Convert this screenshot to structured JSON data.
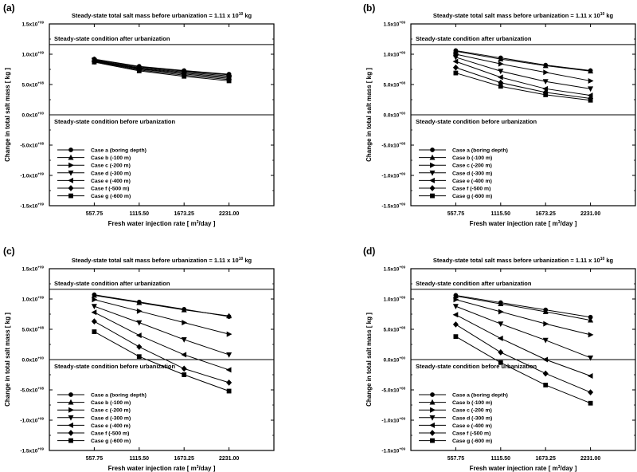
{
  "chart_data": [
    {
      "panel_label": "(a)",
      "type": "line",
      "title": "Steady-state total salt mass before urbanization = 1.11 x 10",
      "title_exponent": "10",
      "title_unit": " kg",
      "xlabel": "Fresh water injection rate [ m",
      "xlabel_exponent": "3",
      "xlabel_tail": "/day ]",
      "ylabel": "Change in total salt mass [ kg ]",
      "x": [
        557.75,
        1115.5,
        1673.25,
        2231.0
      ],
      "x_tick_labels": [
        "557.75",
        "1115.50",
        "1673.25",
        "2231.00"
      ],
      "y_ticks": [
        {
          "mant": "1.5x10",
          "exp": "+09"
        },
        {
          "mant": "1.0x10",
          "exp": "+09"
        },
        {
          "mant": "5.0x10",
          "exp": "+08"
        },
        {
          "mant": "0.0x10",
          "exp": "+00"
        },
        {
          "mant": "-5.0x10",
          "exp": "+08"
        },
        {
          "mant": "-1.0x10",
          "exp": "+09"
        },
        {
          "mant": "-1.5x10",
          "exp": "+09"
        }
      ],
      "ylim": [
        -1500000000,
        1500000000
      ],
      "after_level": 1160000000,
      "after_label": "Steady-state condition after urbanization",
      "before_label": "Steady-state condition before urbanization",
      "legend_position": "lower-left",
      "series": [
        {
          "name": "Case a (boring depth)",
          "marker": "circle",
          "values": [
            920000000,
            800000000,
            730000000,
            670000000
          ]
        },
        {
          "name": "Case b (-100 m)",
          "marker": "triangle-up",
          "values": [
            915000000,
            790000000,
            720000000,
            660000000
          ]
        },
        {
          "name": "Case c (-200 m)",
          "marker": "triangle-right",
          "values": [
            905000000,
            775000000,
            705000000,
            640000000
          ]
        },
        {
          "name": "Case d (-300 m)",
          "marker": "triangle-down",
          "values": [
            895000000,
            765000000,
            690000000,
            620000000
          ]
        },
        {
          "name": "Case e (-400 m)",
          "marker": "triangle-left",
          "values": [
            885000000,
            755000000,
            675000000,
            600000000
          ]
        },
        {
          "name": "Case f (-500 m)",
          "marker": "diamond",
          "values": [
            880000000,
            740000000,
            655000000,
            580000000
          ]
        },
        {
          "name": "Case g (-600 m)",
          "marker": "square",
          "values": [
            870000000,
            725000000,
            635000000,
            560000000
          ]
        }
      ]
    },
    {
      "panel_label": "(b)",
      "type": "line",
      "title": "Steady-state total salt mass before urbanization = 1.11 x 10",
      "title_exponent": "10",
      "title_unit": " kg",
      "xlabel": "Fresh water injection rate [ m",
      "xlabel_exponent": "3",
      "xlabel_tail": "/day ]",
      "ylabel": "Change in total salt mass [ kg ]",
      "x": [
        557.75,
        1115.5,
        1673.25,
        2231.0
      ],
      "x_tick_labels": [
        "557.75",
        "1115.50",
        "1673.25",
        "2231.00"
      ],
      "y_ticks": [
        {
          "mant": "1.5x10",
          "exp": "+09"
        },
        {
          "mant": "1.0x10",
          "exp": "+09"
        },
        {
          "mant": "5.0x10",
          "exp": "+08"
        },
        {
          "mant": "0.0x10",
          "exp": "+00"
        },
        {
          "mant": "-5.0x10",
          "exp": "+08"
        },
        {
          "mant": "-1.0x10",
          "exp": "+09"
        },
        {
          "mant": "-1.5x10",
          "exp": "+09"
        }
      ],
      "ylim": [
        -1500000000,
        1500000000
      ],
      "after_level": 1160000000,
      "after_label": "Steady-state condition after urbanization",
      "before_label": "Steady-state condition before urbanization",
      "legend_position": "lower-left",
      "series": [
        {
          "name": "Case a (boring depth)",
          "marker": "circle",
          "values": [
            1060000000,
            940000000,
            820000000,
            730000000
          ]
        },
        {
          "name": "Case b (-100 m)",
          "marker": "triangle-up",
          "values": [
            1050000000,
            920000000,
            810000000,
            720000000
          ]
        },
        {
          "name": "Case c (-200 m)",
          "marker": "triangle-right",
          "values": [
            1000000000,
            840000000,
            700000000,
            560000000
          ]
        },
        {
          "name": "Case d (-300 m)",
          "marker": "triangle-down",
          "values": [
            950000000,
            720000000,
            550000000,
            430000000
          ]
        },
        {
          "name": "Case e (-400 m)",
          "marker": "triangle-left",
          "values": [
            880000000,
            620000000,
            430000000,
            320000000
          ]
        },
        {
          "name": "Case f (-500 m)",
          "marker": "diamond",
          "values": [
            780000000,
            530000000,
            370000000,
            270000000
          ]
        },
        {
          "name": "Case g (-600 m)",
          "marker": "square",
          "values": [
            690000000,
            470000000,
            330000000,
            240000000
          ]
        }
      ]
    },
    {
      "panel_label": "(c)",
      "type": "line",
      "title": "Steady-state total salt mass before urbanization = 1.11 x 10",
      "title_exponent": "10",
      "title_unit": " kg",
      "xlabel": "Fresh water injection rate [ m",
      "xlabel_exponent": "3",
      "xlabel_tail": "/day ]",
      "ylabel": "Change in total salt mass [ kg ]",
      "x": [
        557.75,
        1115.5,
        1673.25,
        2231.0
      ],
      "x_tick_labels": [
        "557.75",
        "1115.50",
        "1673.25",
        "2231.00"
      ],
      "y_ticks": [
        {
          "mant": "1.5x10",
          "exp": "+09"
        },
        {
          "mant": "1.0x10",
          "exp": "+09"
        },
        {
          "mant": "5.0x10",
          "exp": "+08"
        },
        {
          "mant": "0.0x10",
          "exp": "+00"
        },
        {
          "mant": "-5.0x10",
          "exp": "+08"
        },
        {
          "mant": "-1.0x10",
          "exp": "+09"
        },
        {
          "mant": "-1.5x10",
          "exp": "+09"
        }
      ],
      "ylim": [
        -1500000000,
        1500000000
      ],
      "after_level": 1160000000,
      "after_label": "Steady-state condition after urbanization",
      "before_label": "Steady-state condition before urbanization",
      "legend_position": "lower-left",
      "series": [
        {
          "name": "Case a (boring depth)",
          "marker": "circle",
          "values": [
            1070000000,
            950000000,
            830000000,
            710000000
          ]
        },
        {
          "name": "Case b (-100 m)",
          "marker": "triangle-up",
          "values": [
            1060000000,
            940000000,
            820000000,
            720000000
          ]
        },
        {
          "name": "Case c (-200 m)",
          "marker": "triangle-right",
          "values": [
            990000000,
            800000000,
            610000000,
            420000000
          ]
        },
        {
          "name": "Case d (-300 m)",
          "marker": "triangle-down",
          "values": [
            880000000,
            610000000,
            330000000,
            80000000
          ]
        },
        {
          "name": "Case e (-400 m)",
          "marker": "triangle-left",
          "values": [
            780000000,
            400000000,
            80000000,
            -170000000
          ]
        },
        {
          "name": "Case f (-500 m)",
          "marker": "diamond",
          "values": [
            630000000,
            210000000,
            -150000000,
            -380000000
          ]
        },
        {
          "name": "Case g (-600 m)",
          "marker": "square",
          "values": [
            460000000,
            50000000,
            -250000000,
            -520000000
          ]
        }
      ]
    },
    {
      "panel_label": "(d)",
      "type": "line",
      "title": "Steady-state total salt mass before urbanization = 1.11 x 10",
      "title_exponent": "10",
      "title_unit": " kg",
      "xlabel": "Fresh water injection rate [ m",
      "xlabel_exponent": "3",
      "xlabel_tail": "/day ]",
      "ylabel": "Change in total salt mass [ kg ]",
      "x": [
        557.75,
        1115.5,
        1673.25,
        2231.0
      ],
      "x_tick_labels": [
        "557.75",
        "1115.50",
        "1673.25",
        "2231.00"
      ],
      "y_ticks": [
        {
          "mant": "1.5x10",
          "exp": "+09"
        },
        {
          "mant": "1.0x10",
          "exp": "+09"
        },
        {
          "mant": "5.0x10",
          "exp": "+08"
        },
        {
          "mant": "0.0x10",
          "exp": "+00"
        },
        {
          "mant": "-5.0x10",
          "exp": "+08"
        },
        {
          "mant": "-1.0x10",
          "exp": "+09"
        },
        {
          "mant": "-1.5x10",
          "exp": "+09"
        }
      ],
      "ylim": [
        -1500000000,
        1500000000
      ],
      "after_level": 1160000000,
      "after_label": "Steady-state condition after urbanization",
      "before_label": "Steady-state condition before urbanization",
      "legend_position": "lower-left",
      "series": [
        {
          "name": "Case a (boring depth)",
          "marker": "circle",
          "values": [
            1060000000,
            940000000,
            820000000,
            700000000
          ]
        },
        {
          "name": "Case b (-100 m)",
          "marker": "triangle-up",
          "values": [
            1050000000,
            920000000,
            790000000,
            650000000
          ]
        },
        {
          "name": "Case c (-200 m)",
          "marker": "triangle-right",
          "values": [
            990000000,
            790000000,
            590000000,
            410000000
          ]
        },
        {
          "name": "Case d (-300 m)",
          "marker": "triangle-down",
          "values": [
            880000000,
            590000000,
            320000000,
            30000000
          ]
        },
        {
          "name": "Case e (-400 m)",
          "marker": "triangle-left",
          "values": [
            740000000,
            350000000,
            0,
            -270000000
          ]
        },
        {
          "name": "Case f (-500 m)",
          "marker": "diamond",
          "values": [
            580000000,
            120000000,
            -230000000,
            -540000000
          ]
        },
        {
          "name": "Case g (-600 m)",
          "marker": "square",
          "values": [
            380000000,
            -50000000,
            -420000000,
            -720000000
          ]
        }
      ]
    }
  ]
}
